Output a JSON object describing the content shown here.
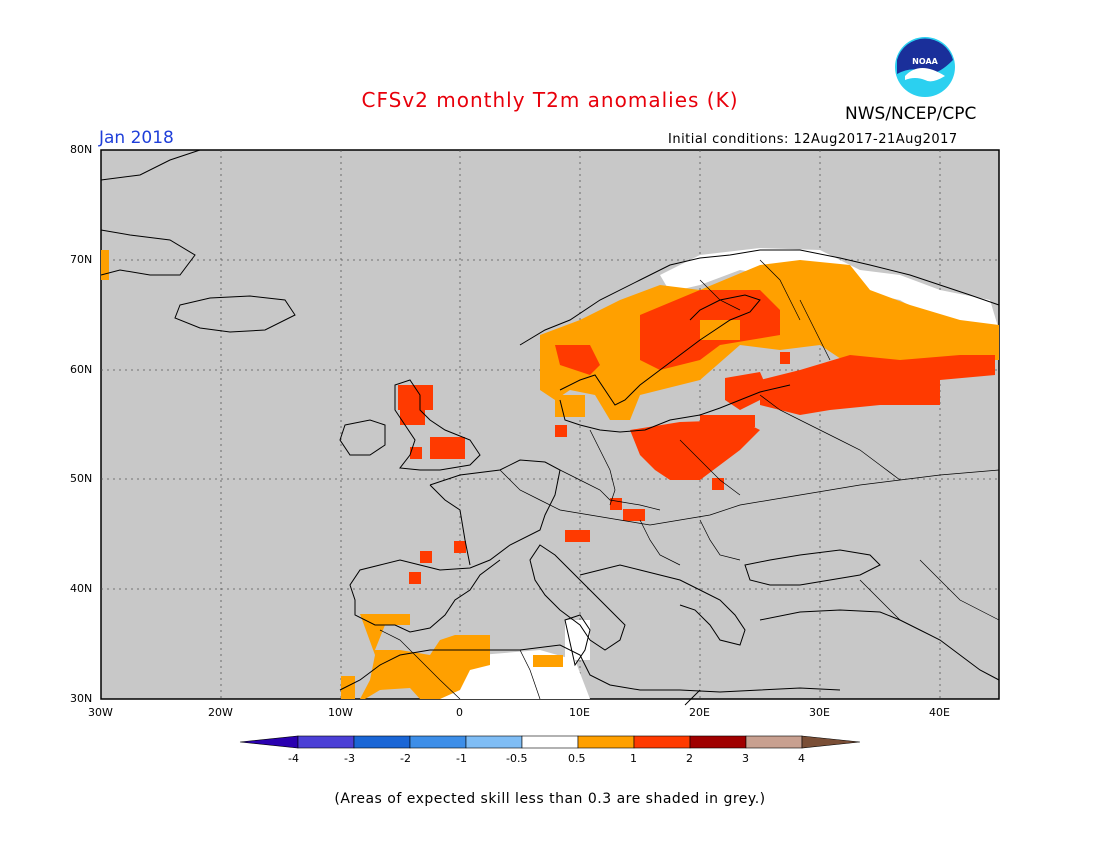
{
  "header": {
    "title": "CFSv2 monthly T2m anomalies (K)",
    "agency": "NWS/NCEP/CPC",
    "month": "Jan 2018",
    "initial_conditions": "Initial conditions: 12Aug2017-21Aug2017"
  },
  "logo": {
    "text": "NOAA",
    "icon": "noaa-logo-icon"
  },
  "map": {
    "lat_labels": [
      "80N",
      "70N",
      "60N",
      "50N",
      "40N",
      "30N"
    ],
    "lon_labels": [
      "30W",
      "20W",
      "10W",
      "0",
      "10E",
      "20E",
      "30E",
      "40E"
    ],
    "land_color": "#c8c8c8"
  },
  "legend": {
    "ticks": [
      "-4",
      "-3",
      "-2",
      "-1",
      "-0.5",
      "0.5",
      "1",
      "2",
      "3",
      "4"
    ],
    "colors": [
      "#2a00b0",
      "#4b3fd6",
      "#1a66d6",
      "#3d8ee8",
      "#7fbdf5",
      "#ffffff",
      "#ffa000",
      "#ff3a00",
      "#a00000",
      "#c8a090",
      "#7a4e36"
    ]
  },
  "anomalies": {
    "color_05_1": "#ffa000",
    "color_1_2": "#ff3a00"
  },
  "footnote": "(Areas of expected skill less than 0.3 are shaded in grey.)"
}
